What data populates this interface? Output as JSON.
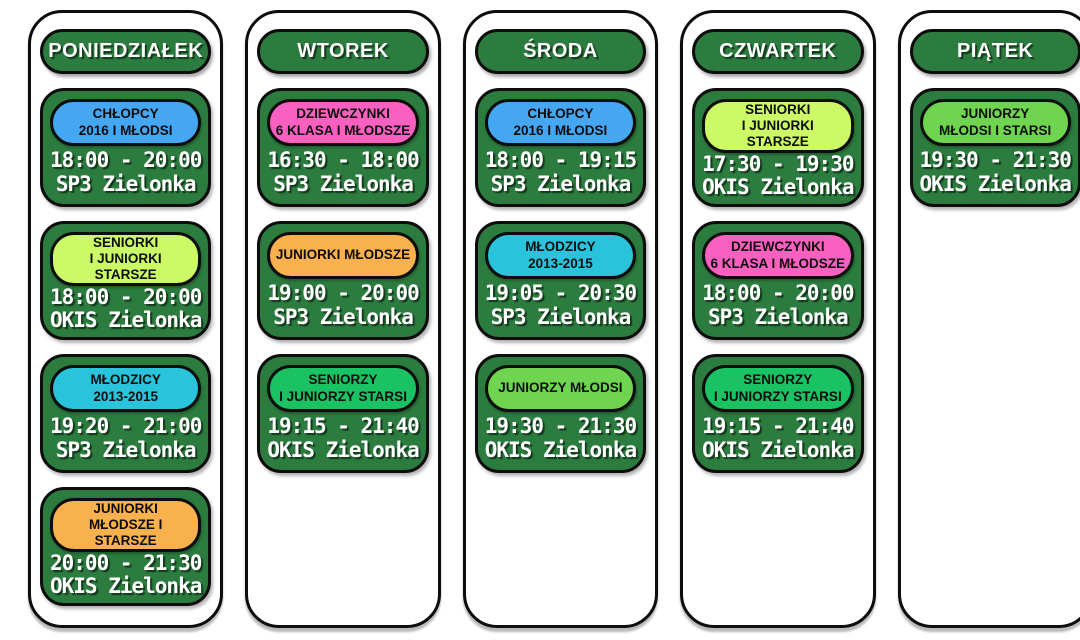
{
  "colors": {
    "card_green": "#2b7c3e",
    "outline_black": "#0d0d0d",
    "pill_blue": "#45a6f2",
    "pill_cyan": "#29c3db",
    "pill_lime": "#ccf966",
    "pill_orange": "#f9b14e",
    "pill_pink": "#fa60c0",
    "pill_emerald": "#1bc263",
    "pill_light_green": "#6fd44f"
  },
  "days": [
    {
      "label": "PONIEDZIAŁEK",
      "sessions": [
        {
          "group": [
            "CHŁOPCY",
            "2016 I MŁODSI"
          ],
          "pill_color": "#45a6f2",
          "time": "18:00 - 20:00",
          "venue": "SP3 Zielonka"
        },
        {
          "group": [
            "SENIORKI",
            "I JUNIORKI STARSZE"
          ],
          "pill_color": "#ccf966",
          "time": "18:00 - 20:00",
          "venue": "OKIS Zielonka"
        },
        {
          "group": [
            "MŁODZICY",
            "2013-2015"
          ],
          "pill_color": "#29c3db",
          "time": "19:20 - 21:00",
          "venue": "SP3 Zielonka"
        },
        {
          "group": [
            "JUNIORKI",
            "MŁODSZE I STARSZE"
          ],
          "pill_color": "#f9b14e",
          "time": "20:00 - 21:30",
          "venue": "OKIS Zielonka"
        }
      ]
    },
    {
      "label": "WTOREK",
      "sessions": [
        {
          "group": [
            "DZIEWCZYNKI",
            "6 KLASA I MŁODSZE"
          ],
          "pill_color": "#fa60c0",
          "time": "16:30 - 18:00",
          "venue": "SP3 Zielonka"
        },
        {
          "group": [
            "JUNIORKI MŁODSZE"
          ],
          "pill_color": "#f9b14e",
          "time": "19:00 - 20:00",
          "venue": "SP3 Zielonka"
        },
        {
          "group": [
            "SENIORZY",
            "I JUNIORZY STARSI"
          ],
          "pill_color": "#1bc263",
          "time": "19:15 - 21:40",
          "venue": "OKIS Zielonka"
        }
      ]
    },
    {
      "label": "ŚRODA",
      "sessions": [
        {
          "group": [
            "CHŁOPCY",
            "2016 I MŁODSI"
          ],
          "pill_color": "#45a6f2",
          "time": "18:00 - 19:15",
          "venue": "SP3 Zielonka"
        },
        {
          "group": [
            "MŁODZICY",
            "2013-2015"
          ],
          "pill_color": "#29c3db",
          "time": "19:05 - 20:30",
          "venue": "SP3 Zielonka"
        },
        {
          "group": [
            "JUNIORZY MŁODSI"
          ],
          "pill_color": "#6fd44f",
          "time": "19:30 - 21:30",
          "venue": "OKIS Zielonka"
        }
      ]
    },
    {
      "label": "CZWARTEK",
      "sessions": [
        {
          "group": [
            "SENIORKI",
            "I JUNIORKI STARSZE"
          ],
          "pill_color": "#ccf966",
          "time": "17:30 - 19:30",
          "venue": "OKIS Zielonka"
        },
        {
          "group": [
            "DZIEWCZYNKI",
            "6 KLASA I MŁODSZE"
          ],
          "pill_color": "#fa60c0",
          "time": "18:00 - 20:00",
          "venue": "SP3 Zielonka"
        },
        {
          "group": [
            "SENIORZY",
            "I JUNIORZY STARSI"
          ],
          "pill_color": "#1bc263",
          "time": "19:15 - 21:40",
          "venue": "OKIS Zielonka"
        }
      ]
    },
    {
      "label": "PIĄTEK",
      "sessions": [
        {
          "group": [
            "JUNIORZY",
            "MŁODSI I STARSI"
          ],
          "pill_color": "#6fd44f",
          "time": "19:30 - 21:30",
          "venue": "OKIS Zielonka"
        }
      ]
    }
  ]
}
